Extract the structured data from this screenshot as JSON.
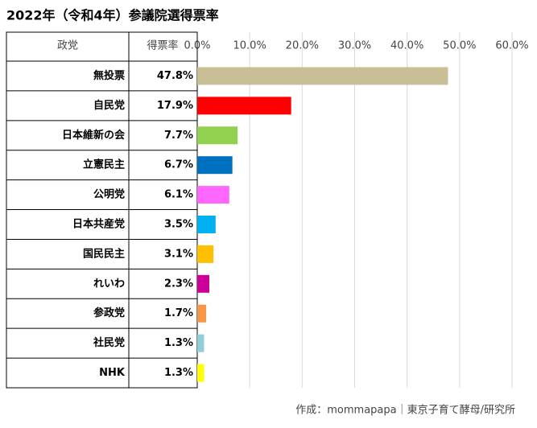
{
  "chart_data": {
    "type": "bar",
    "orientation": "horizontal",
    "title": "2022年（令和4年）参議院選得票率",
    "column_headers": [
      "政党",
      "得票率"
    ],
    "categories": [
      "無投票",
      "自民党",
      "日本維新の会",
      "立憲民主",
      "公明党",
      "日本共産党",
      "国民民主",
      "れいわ",
      "参政党",
      "社民党",
      "NHK"
    ],
    "values": [
      47.8,
      17.9,
      7.7,
      6.7,
      6.1,
      3.5,
      3.1,
      2.3,
      1.7,
      1.3,
      1.3
    ],
    "value_labels": [
      "47.8%",
      "17.9%",
      "7.7%",
      "6.7%",
      "6.1%",
      "3.5%",
      "3.1%",
      "2.3%",
      "1.7%",
      "1.3%",
      "1.3%"
    ],
    "colors": [
      "#c8bf96",
      "#ff0000",
      "#92d050",
      "#0070c0",
      "#ff66ff",
      "#00b0f0",
      "#ffc000",
      "#cc0099",
      "#f79646",
      "#92cddc",
      "#ffff00"
    ],
    "xlim": [
      0,
      60
    ],
    "xticks": [
      {
        "value": 0,
        "label": "0.0%"
      },
      {
        "value": 10,
        "label": "10.0%"
      },
      {
        "value": 20,
        "label": "20.0%"
      },
      {
        "value": 30,
        "label": "30.0%"
      },
      {
        "value": 40,
        "label": "40.0%"
      },
      {
        "value": 50,
        "label": "50.0%"
      },
      {
        "value": 60,
        "label": "60.0%"
      }
    ],
    "grid": true,
    "source": "作成：mommapapa｜東京子育て酵母/研究所"
  }
}
